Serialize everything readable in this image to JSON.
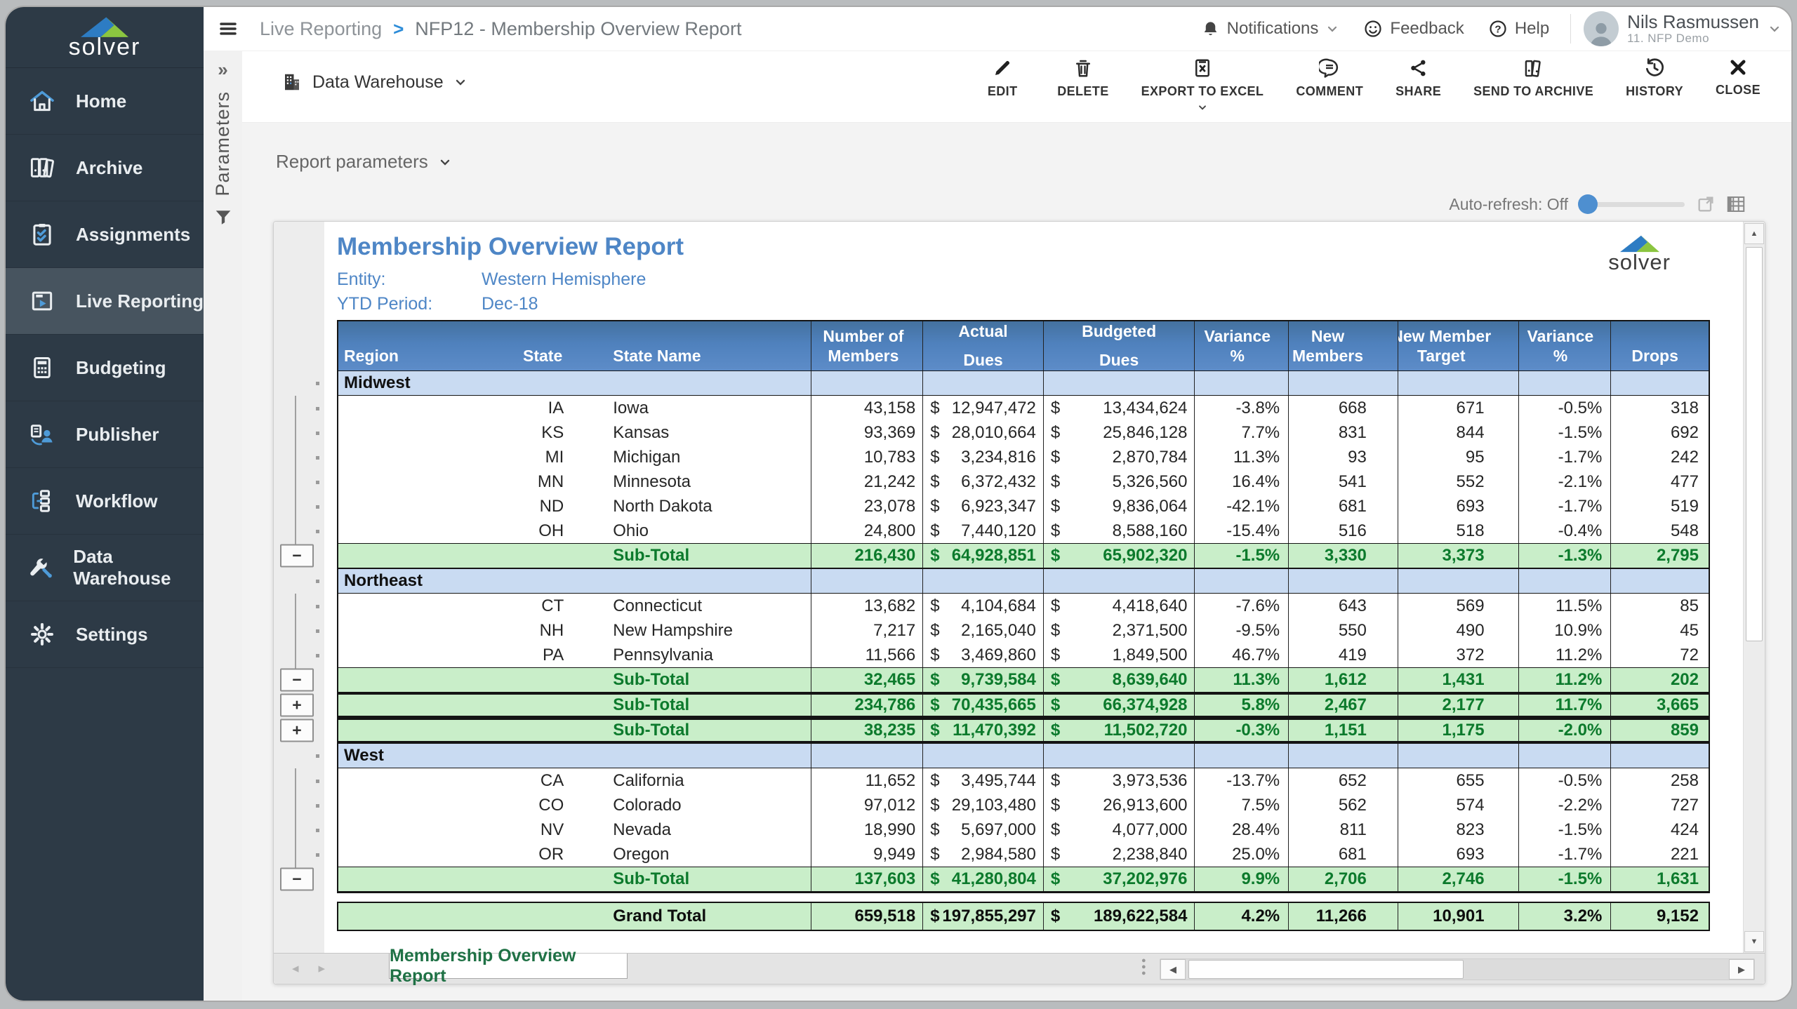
{
  "app": {
    "name": "solver"
  },
  "sidebar": {
    "logo_text": "solver",
    "items": [
      {
        "label": "Home",
        "icon": "home-icon",
        "active": false
      },
      {
        "label": "Archive",
        "icon": "archive-icon",
        "active": false
      },
      {
        "label": "Assignments",
        "icon": "assignments-icon",
        "active": false
      },
      {
        "label": "Live Reporting",
        "icon": "live-reporting-icon",
        "active": true
      },
      {
        "label": "Budgeting",
        "icon": "budgeting-icon",
        "active": false
      },
      {
        "label": "Publisher",
        "icon": "publisher-icon",
        "active": false
      },
      {
        "label": "Workflow",
        "icon": "workflow-icon",
        "active": false
      },
      {
        "label": "Data Warehouse",
        "icon": "data-warehouse-icon",
        "active": false
      },
      {
        "label": "Settings",
        "icon": "settings-icon",
        "active": false
      }
    ]
  },
  "parameters_panel": {
    "label": "Parameters"
  },
  "topbar": {
    "breadcrumb": [
      "Live Reporting",
      "NFP12 - Membership Overview Report"
    ],
    "notifications_label": "Notifications",
    "feedback_label": "Feedback",
    "help_label": "Help",
    "user_name": "Nils Rasmussen",
    "user_tenant": "11. NFP Demo"
  },
  "toolbar": {
    "context_label": "Data Warehouse",
    "actions": [
      {
        "label": "EDIT",
        "icon": "edit-icon",
        "has_dropdown": false
      },
      {
        "label": "DELETE",
        "icon": "delete-icon",
        "has_dropdown": false
      },
      {
        "label": "EXPORT TO EXCEL",
        "icon": "excel-icon",
        "has_dropdown": true
      },
      {
        "label": "COMMENT",
        "icon": "comment-icon",
        "has_dropdown": false
      },
      {
        "label": "SHARE",
        "icon": "share-icon",
        "has_dropdown": false
      },
      {
        "label": "SEND TO ARCHIVE",
        "icon": "send-archive-icon",
        "has_dropdown": false
      },
      {
        "label": "HISTORY",
        "icon": "history-icon",
        "has_dropdown": false
      },
      {
        "label": "CLOSE",
        "icon": "close-icon",
        "has_dropdown": false
      }
    ]
  },
  "report_bar": {
    "parameters_label": "Report parameters",
    "autorefresh_label": "Auto-refresh: Off"
  },
  "report": {
    "title": "Membership Overview Report",
    "entity_label": "Entity:",
    "entity_value": "Western Hemisphere",
    "period_label": "YTD Period:",
    "period_value": "Dec-18",
    "logo_text": "solver"
  },
  "table": {
    "currency_symbol": "$",
    "header": [
      {
        "l1": "",
        "l2": "Region"
      },
      {
        "l1": "",
        "l2": "State"
      },
      {
        "l1": "",
        "l2": "State Name"
      },
      {
        "l1": "Number of",
        "l2": "Members"
      },
      {
        "l1": "Actual",
        "l2": "Dues"
      },
      {
        "l1": "Budgeted",
        "l2": "Dues"
      },
      {
        "l1": "Variance",
        "l2": "%"
      },
      {
        "l1": "New",
        "l2": "Members"
      },
      {
        "l1": "New Member",
        "l2": "Target"
      },
      {
        "l1": "Variance",
        "l2": "%"
      },
      {
        "l1": "",
        "l2": "Drops"
      }
    ],
    "rows": [
      {
        "type": "region",
        "label": "Midwest"
      },
      {
        "type": "data",
        "cells": [
          "IA",
          "Iowa",
          "43,158",
          "12,947,472",
          "13,434,624",
          "-3.8%",
          "668",
          "671",
          "-0.5%",
          "318"
        ]
      },
      {
        "type": "data",
        "cells": [
          "KS",
          "Kansas",
          "93,369",
          "28,010,664",
          "25,846,128",
          "7.7%",
          "831",
          "844",
          "-1.5%",
          "692"
        ]
      },
      {
        "type": "data",
        "cells": [
          "MI",
          "Michigan",
          "10,783",
          "3,234,816",
          "2,870,784",
          "11.3%",
          "93",
          "95",
          "-1.7%",
          "242"
        ]
      },
      {
        "type": "data",
        "cells": [
          "MN",
          "Minnesota",
          "21,242",
          "6,372,432",
          "5,326,560",
          "16.4%",
          "541",
          "552",
          "-2.1%",
          "477"
        ]
      },
      {
        "type": "data",
        "cells": [
          "ND",
          "North Dakota",
          "23,078",
          "6,923,347",
          "9,836,064",
          "-42.1%",
          "681",
          "693",
          "-1.7%",
          "519"
        ]
      },
      {
        "type": "data",
        "cells": [
          "OH",
          "Ohio",
          "24,800",
          "7,440,120",
          "8,588,160",
          "-15.4%",
          "516",
          "518",
          "-0.4%",
          "548"
        ]
      },
      {
        "type": "subtotal",
        "label": "Sub-Total",
        "cells": [
          "216,430",
          "64,928,851",
          "65,902,320",
          "-1.5%",
          "3,330",
          "3,373",
          "-1.3%",
          "2,795"
        ]
      },
      {
        "type": "region",
        "label": "Northeast"
      },
      {
        "type": "data",
        "cells": [
          "CT",
          "Connecticut",
          "13,682",
          "4,104,684",
          "4,418,640",
          "-7.6%",
          "643",
          "569",
          "11.5%",
          "85"
        ]
      },
      {
        "type": "data",
        "cells": [
          "NH",
          "New Hampshire",
          "7,217",
          "2,165,040",
          "2,371,500",
          "-9.5%",
          "550",
          "490",
          "10.9%",
          "45"
        ]
      },
      {
        "type": "data",
        "cells": [
          "PA",
          "Pennsylvania",
          "11,566",
          "3,469,860",
          "1,849,500",
          "46.7%",
          "419",
          "372",
          "11.2%",
          "72"
        ]
      },
      {
        "type": "subtotal",
        "label": "Sub-Total",
        "cells": [
          "32,465",
          "9,739,584",
          "8,639,640",
          "11.3%",
          "1,612",
          "1,431",
          "11.2%",
          "202"
        ]
      },
      {
        "type": "subtotal_collapsed",
        "label": "Sub-Total",
        "cells": [
          "234,786",
          "70,435,665",
          "66,374,928",
          "5.8%",
          "2,467",
          "2,177",
          "11.7%",
          "3,665"
        ]
      },
      {
        "type": "subtotal_collapsed",
        "label": "Sub-Total",
        "cells": [
          "38,235",
          "11,470,392",
          "11,502,720",
          "-0.3%",
          "1,151",
          "1,175",
          "-2.0%",
          "859"
        ]
      },
      {
        "type": "region",
        "label": "West"
      },
      {
        "type": "data",
        "cells": [
          "CA",
          "California",
          "11,652",
          "3,495,744",
          "3,973,536",
          "-13.7%",
          "652",
          "655",
          "-0.5%",
          "258"
        ]
      },
      {
        "type": "data",
        "cells": [
          "CO",
          "Colorado",
          "97,012",
          "29,103,480",
          "26,913,600",
          "7.5%",
          "562",
          "574",
          "-2.2%",
          "727"
        ]
      },
      {
        "type": "data",
        "cells": [
          "NV",
          "Nevada",
          "18,990",
          "5,697,000",
          "4,077,000",
          "28.4%",
          "811",
          "823",
          "-1.5%",
          "424"
        ]
      },
      {
        "type": "data",
        "cells": [
          "OR",
          "Oregon",
          "9,949",
          "2,984,580",
          "2,238,840",
          "25.0%",
          "681",
          "693",
          "-1.7%",
          "221"
        ]
      },
      {
        "type": "subtotal",
        "label": "Sub-Total",
        "cells": [
          "137,603",
          "41,280,804",
          "37,202,976",
          "9.9%",
          "2,706",
          "2,746",
          "-1.5%",
          "1,631"
        ]
      },
      {
        "type": "gap"
      },
      {
        "type": "grand",
        "label": "Grand Total",
        "cells": [
          "659,518",
          "197,855,297",
          "189,622,584",
          "4.2%",
          "11,266",
          "10,901",
          "3.2%",
          "9,152"
        ]
      }
    ]
  },
  "sheet_tabs": {
    "active": "Membership Overview Report"
  },
  "colors": {
    "accent_blue": "#4f81bd",
    "region_row": "#c9dbf2",
    "subtotal_bg": "#c9eec9",
    "subtotal_text": "#0c7a2c",
    "sidebar_bg": "#2d3a46",
    "title_blue": "#4e86c6",
    "tab_green": "#1f7145",
    "slider_blue": "#4e8fd0"
  }
}
